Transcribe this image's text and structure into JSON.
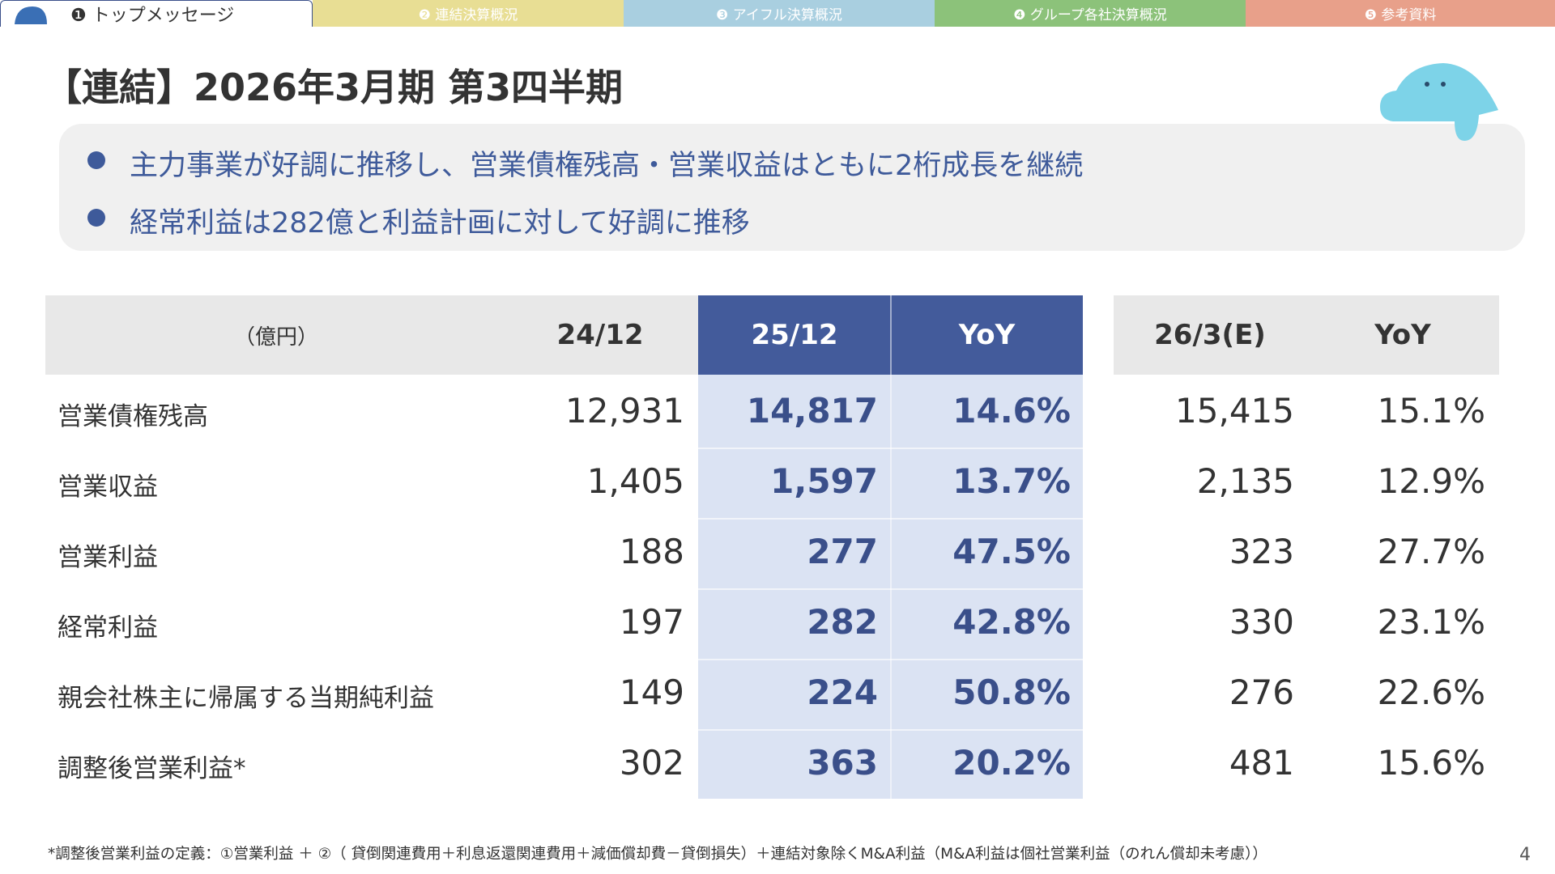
{
  "tabs": [
    "❶ トップメッセージ",
    "❷ 連結決算概況",
    "❸ アイフル決算概況",
    "❹ グループ各社決算概況",
    "❺ 参考資料"
  ],
  "title": "【連結】2026年3月期 第3四半期",
  "bullets": [
    "主力事業が好調に推移し、営業債権残高・営業収益はともに2桁成長を継続",
    "経常利益は282億と利益計画に対して好調に推移"
  ],
  "table": {
    "header": [
      "（億円）",
      "24/12",
      "25/12",
      "YoY",
      "26/3(E)",
      "YoY"
    ],
    "rows": [
      [
        "営業債権残高",
        "12,931",
        "14,817",
        "14.6%",
        "15,415",
        "15.1%"
      ],
      [
        "営業収益",
        "1,405",
        "1,597",
        "13.7%",
        "2,135",
        "12.9%"
      ],
      [
        "営業利益",
        "188",
        "277",
        "47.5%",
        "323",
        "27.7%"
      ],
      [
        "経常利益",
        "197",
        "282",
        "42.8%",
        "330",
        "23.1%"
      ],
      [
        "親会社株主に帰属する当期純利益",
        "149",
        "224",
        "50.8%",
        "276",
        "22.6%"
      ],
      [
        "調整後営業利益*",
        "302",
        "363",
        "20.2%",
        "481",
        "15.6%"
      ]
    ]
  },
  "footnote": "*調整後営業利益の定義：①営業利益 ＋ ②（ 貸倒関連費用＋利息返還関連費用＋減価償却費－貸倒損失）＋連結対象除くM&A利益（M&A利益は個社営業利益（のれん償却未考慮））",
  "page_number": "4"
}
